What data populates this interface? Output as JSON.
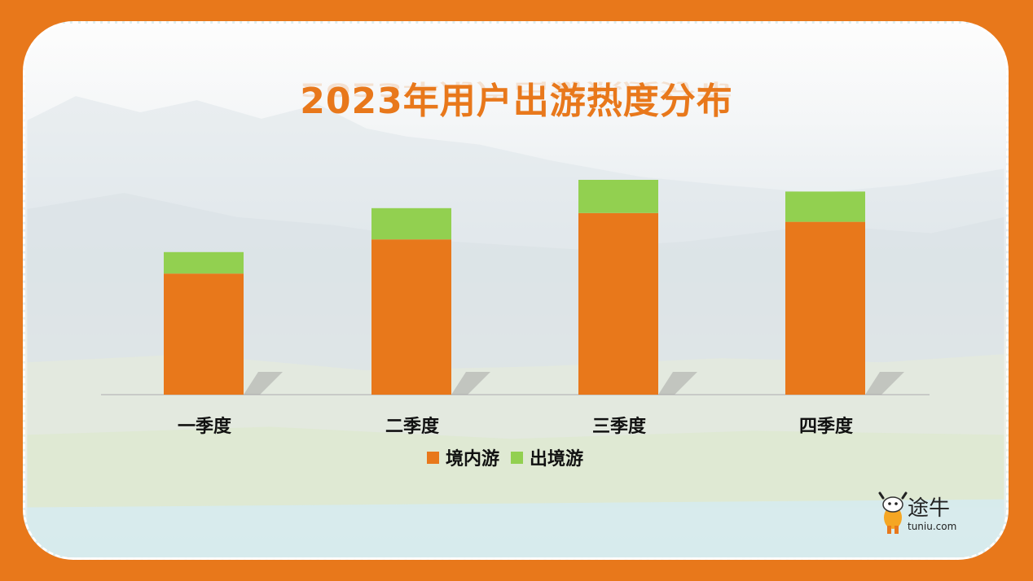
{
  "title": "2023年用户出游热度分布",
  "chart_data": {
    "type": "bar",
    "stacked": true,
    "categories": [
      "一季度",
      "二季度",
      "三季度",
      "四季度"
    ],
    "series": [
      {
        "name": "境内游",
        "values": [
          124,
          159,
          186,
          177
        ],
        "color": "#e8781b"
      },
      {
        "name": "出境游",
        "values": [
          22,
          32,
          34,
          31
        ],
        "color": "#92d050"
      }
    ],
    "ylim": [
      0,
      250
    ],
    "legend": "bottom",
    "grid": false,
    "xlabel": "",
    "ylabel": ""
  },
  "logo": {
    "name": "途牛",
    "url": "tuniu.com",
    "icon": "cow-mascot-icon"
  },
  "colors": {
    "accent": "#e8781b",
    "secondary": "#92d050",
    "frame_border": "#ffffff"
  }
}
